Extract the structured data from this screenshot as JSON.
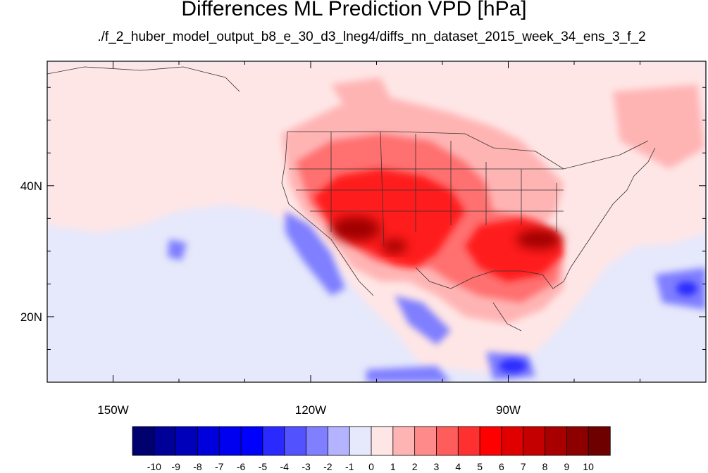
{
  "title": "Differences ML Prediction VPD [hPa]",
  "subtitle": "./f_2_huber_model_output_b8_e_30_d3_lneg4/diffs_nn_dataset_2015_week_34_ens_3_f_2",
  "map": {
    "lon_range": [
      -160,
      -60
    ],
    "lat_range": [
      10,
      59
    ],
    "x_ticks": [
      {
        "lon": -150,
        "label": "150W"
      },
      {
        "lon": -120,
        "label": "120W"
      },
      {
        "lon": -90,
        "label": "90W"
      }
    ],
    "y_ticks": [
      {
        "lat": 40,
        "label": "40N"
      },
      {
        "lat": 20,
        "label": "20N"
      }
    ],
    "background_color": "#e6e8fb"
  },
  "colorbar": {
    "labels": [
      "-10",
      "-9",
      "-8",
      "-7",
      "-6",
      "-5",
      "-4",
      "-3",
      "-2",
      "-1",
      "0",
      "1",
      "2",
      "3",
      "4",
      "5",
      "6",
      "7",
      "8",
      "9",
      "10"
    ],
    "colors": [
      "#00006e",
      "#000099",
      "#0000bb",
      "#0000dd",
      "#0000f0",
      "#0000ff",
      "#2a2aff",
      "#5252ff",
      "#7f7fff",
      "#b3b3ff",
      "#e6e8fb",
      "#ffe6e6",
      "#ffb4b4",
      "#ff8a8a",
      "#ff5c5c",
      "#ff3030",
      "#ff0000",
      "#e00000",
      "#c40000",
      "#a80000",
      "#8c0000",
      "#6e0000"
    ]
  }
}
